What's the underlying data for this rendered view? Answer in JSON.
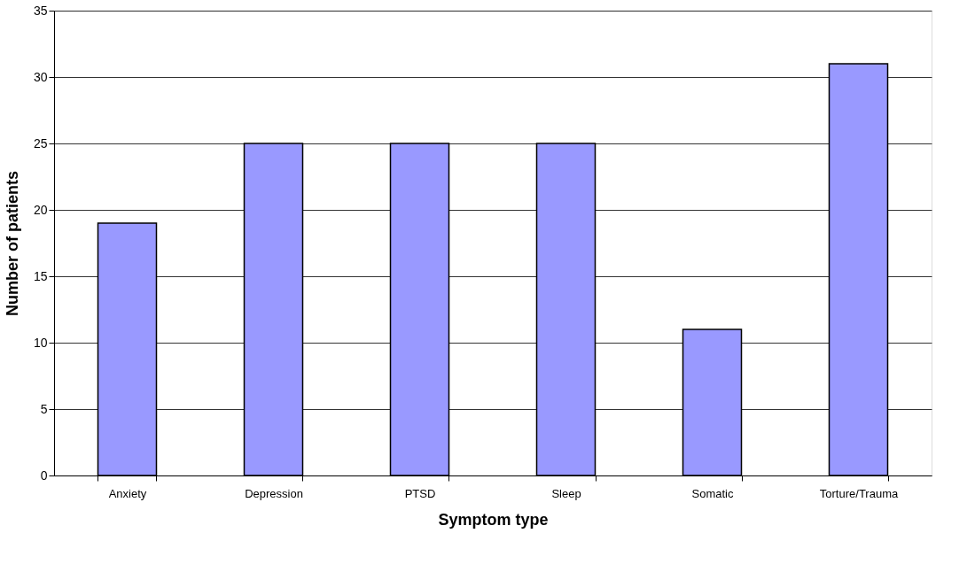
{
  "chart_data": {
    "type": "bar",
    "xlabel": "Symptom type",
    "ylabel": "Number of patients",
    "categories": [
      "Anxiety",
      "Depression",
      "PTSD",
      "Sleep",
      "Somatic",
      "Torture/Trauma"
    ],
    "values": [
      19,
      25,
      25,
      25,
      11,
      31
    ],
    "color": "#9999ff",
    "ylim": [
      0,
      35
    ],
    "yticks": [
      0,
      5,
      10,
      15,
      20,
      25,
      30,
      35
    ],
    "grid": "y"
  }
}
